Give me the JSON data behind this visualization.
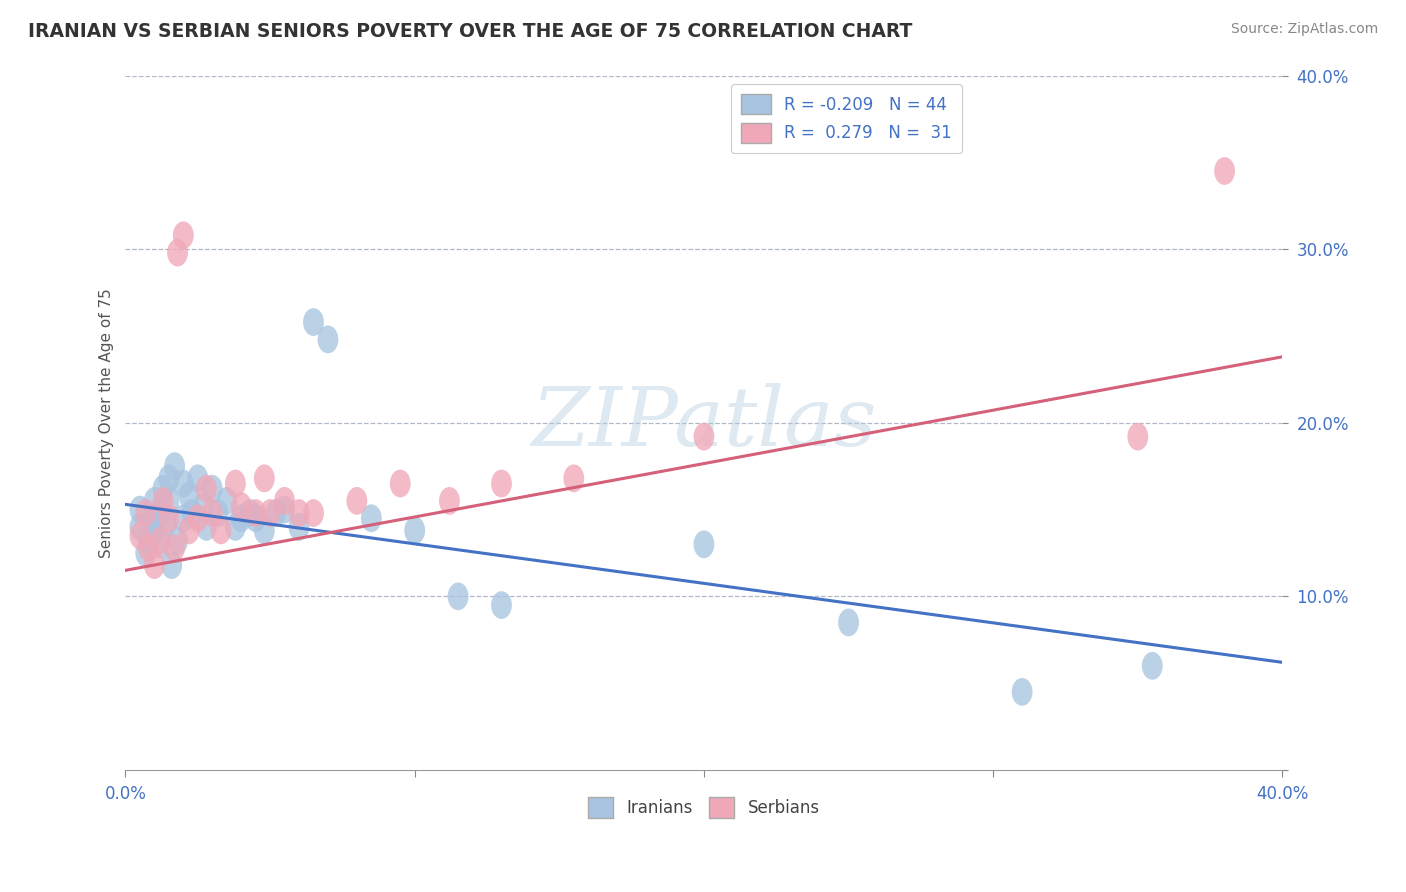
{
  "title": "IRANIAN VS SERBIAN SENIORS POVERTY OVER THE AGE OF 75 CORRELATION CHART",
  "source": "Source: ZipAtlas.com",
  "ylabel": "Seniors Poverty Over the Age of 75",
  "xlim": [
    0.0,
    0.4
  ],
  "ylim": [
    0.0,
    0.4
  ],
  "xticks": [
    0.0,
    0.1,
    0.2,
    0.3,
    0.4
  ],
  "yticks": [
    0.0,
    0.1,
    0.2,
    0.3,
    0.4
  ],
  "xticklabels": [
    "0.0%",
    "",
    "",
    "",
    "40.0%"
  ],
  "yticklabels": [
    "",
    "10.0%",
    "20.0%",
    "30.0%",
    "40.0%"
  ],
  "iranian_color": "#a8c4e0",
  "serbian_color": "#f0a8b8",
  "iranian_line_color": "#4472c4",
  "serbian_line_color": "#d4607a",
  "watermark": "ZIPatlas",
  "iranian_R": -0.209,
  "iranian_N": 44,
  "serbian_R": 0.279,
  "serbian_N": 31,
  "iranian_line_start_y": 0.153,
  "iranian_line_end_y": 0.062,
  "serbian_line_start_y": 0.115,
  "serbian_line_end_y": 0.238,
  "iranians_scatter_x": [
    0.005,
    0.005,
    0.007,
    0.008,
    0.01,
    0.01,
    0.01,
    0.012,
    0.012,
    0.013,
    0.014,
    0.015,
    0.015,
    0.016,
    0.017,
    0.018,
    0.02,
    0.02,
    0.022,
    0.023,
    0.025,
    0.027,
    0.028,
    0.03,
    0.032,
    0.035,
    0.038,
    0.04,
    0.043,
    0.045,
    0.048,
    0.052,
    0.055,
    0.06,
    0.065,
    0.07,
    0.085,
    0.1,
    0.115,
    0.13,
    0.2,
    0.25,
    0.31,
    0.355
  ],
  "iranians_scatter_y": [
    0.15,
    0.14,
    0.125,
    0.133,
    0.145,
    0.138,
    0.155,
    0.148,
    0.13,
    0.162,
    0.142,
    0.155,
    0.168,
    0.118,
    0.175,
    0.132,
    0.165,
    0.145,
    0.158,
    0.148,
    0.168,
    0.152,
    0.14,
    0.162,
    0.148,
    0.155,
    0.14,
    0.145,
    0.148,
    0.145,
    0.138,
    0.148,
    0.15,
    0.14,
    0.258,
    0.248,
    0.145,
    0.138,
    0.1,
    0.095,
    0.13,
    0.085,
    0.045,
    0.06
  ],
  "serbians_scatter_x": [
    0.005,
    0.007,
    0.008,
    0.01,
    0.012,
    0.013,
    0.015,
    0.017,
    0.018,
    0.02,
    0.022,
    0.025,
    0.028,
    0.03,
    0.033,
    0.038,
    0.04,
    0.045,
    0.048,
    0.05,
    0.055,
    0.06,
    0.065,
    0.08,
    0.095,
    0.112,
    0.13,
    0.155,
    0.2,
    0.35,
    0.38
  ],
  "serbians_scatter_y": [
    0.135,
    0.148,
    0.128,
    0.118,
    0.132,
    0.155,
    0.145,
    0.128,
    0.298,
    0.308,
    0.138,
    0.145,
    0.162,
    0.148,
    0.138,
    0.165,
    0.152,
    0.148,
    0.168,
    0.148,
    0.155,
    0.148,
    0.148,
    0.155,
    0.165,
    0.155,
    0.165,
    0.168,
    0.192,
    0.192,
    0.345
  ],
  "background_color": "#ffffff",
  "grid_color": "#b0b8c8",
  "tick_color": "#4472c4",
  "title_color": "#333333",
  "source_color": "#888888"
}
